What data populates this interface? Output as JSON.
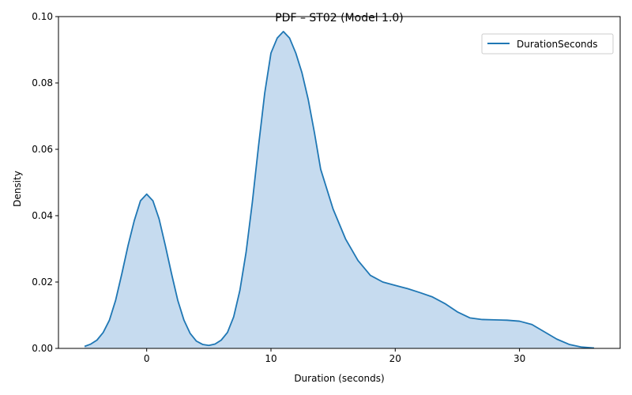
{
  "chart_data": {
    "type": "area",
    "title": "PDF – ST02 (Model 1.0)",
    "xlabel": "Duration (seconds)",
    "ylabel": "Density",
    "xlim": [
      -7.1,
      38.1
    ],
    "ylim": [
      0,
      0.1
    ],
    "x_ticks": [
      0,
      10,
      20,
      30
    ],
    "x_tick_labels": [
      "0",
      "10",
      "20",
      "30"
    ],
    "y_ticks": [
      0,
      0.02,
      0.04,
      0.06,
      0.08,
      0.1
    ],
    "y_tick_labels": [
      "0.00",
      "0.02",
      "0.04",
      "0.06",
      "0.08",
      "0.10"
    ],
    "grid": false,
    "legend_position": "top-right",
    "colors": {
      "line": "#1f77b4",
      "fill": "#c6dbef"
    },
    "series": [
      {
        "name": "DurationSeconds",
        "x": [
          -5.0,
          -4.5,
          -4.0,
          -3.5,
          -3.0,
          -2.5,
          -2.0,
          -1.5,
          -1.0,
          -0.5,
          0.0,
          0.5,
          1.0,
          1.5,
          2.0,
          2.5,
          3.0,
          3.5,
          4.0,
          4.5,
          5.0,
          5.5,
          6.0,
          6.5,
          7.0,
          7.5,
          8.0,
          8.5,
          9.0,
          9.5,
          10.0,
          10.5,
          11.0,
          11.5,
          12.0,
          12.5,
          13.0,
          13.5,
          14.0,
          15.0,
          16.0,
          17.0,
          18.0,
          19.0,
          20.0,
          21.0,
          22.0,
          23.0,
          24.0,
          25.0,
          26.0,
          27.0,
          28.0,
          29.0,
          30.0,
          31.0,
          32.0,
          33.0,
          34.0,
          35.0,
          36.0
        ],
        "y": [
          0.0006,
          0.0013,
          0.0025,
          0.0048,
          0.0085,
          0.0145,
          0.0225,
          0.031,
          0.0385,
          0.0445,
          0.0465,
          0.0445,
          0.039,
          0.031,
          0.0225,
          0.0145,
          0.0085,
          0.0045,
          0.0022,
          0.0012,
          0.0009,
          0.0013,
          0.0025,
          0.0048,
          0.0095,
          0.0175,
          0.029,
          0.044,
          0.061,
          0.077,
          0.089,
          0.0935,
          0.0955,
          0.0935,
          0.089,
          0.083,
          0.075,
          0.065,
          0.054,
          0.042,
          0.033,
          0.0265,
          0.022,
          0.02,
          0.019,
          0.018,
          0.0168,
          0.0155,
          0.0135,
          0.011,
          0.0092,
          0.0087,
          0.0086,
          0.0085,
          0.0082,
          0.0072,
          0.005,
          0.0028,
          0.0012,
          0.0004,
          0.0001
        ]
      }
    ]
  }
}
